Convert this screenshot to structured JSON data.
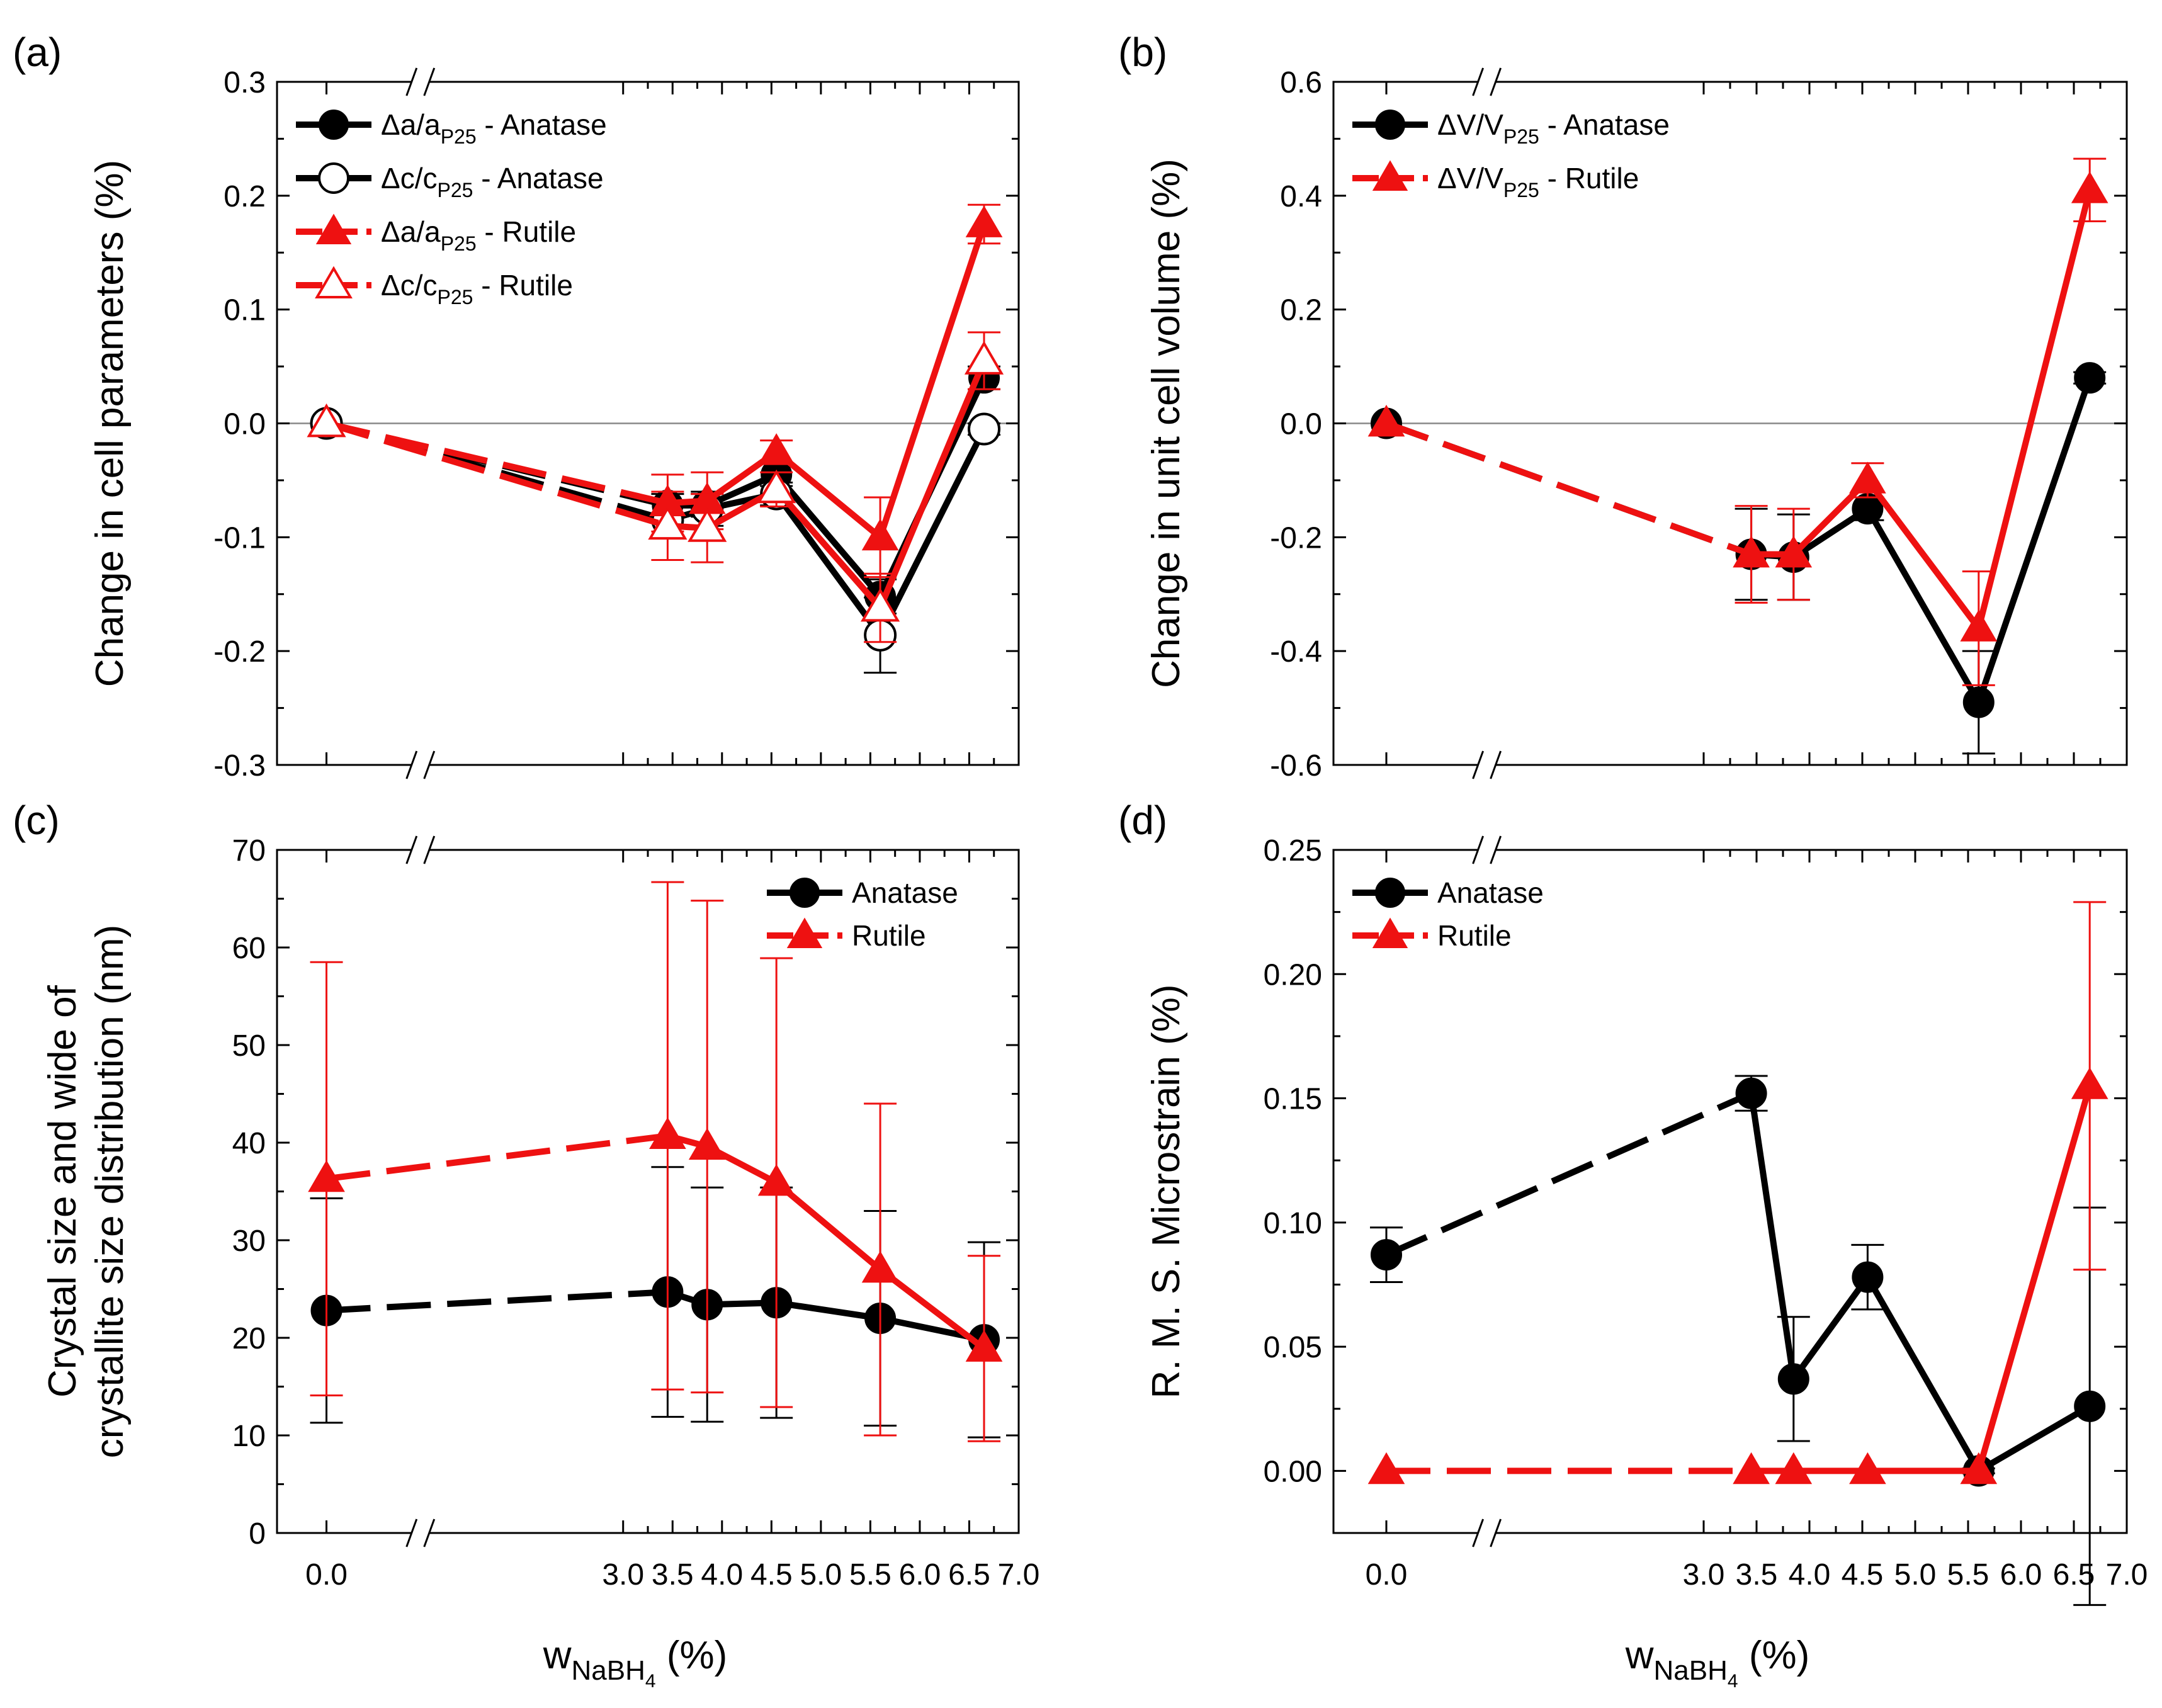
{
  "colors": {
    "anatase": "#000000",
    "rutile": "#ee1111",
    "break_mask": "#ffffff"
  },
  "chart_data": [
    {
      "id": "a",
      "type": "line",
      "panel_label": "(a)",
      "ylabel": "Change in cell parameters (%)",
      "xlabel": "",
      "ylim": [
        -0.3,
        0.3
      ],
      "yticks": [
        -0.3,
        -0.2,
        -0.1,
        0.0,
        0.1,
        0.2,
        0.3
      ],
      "ytick_labels": [
        "-0.3",
        "-0.2",
        "-0.1",
        "0.0",
        "0.1",
        "0.2",
        "0.3"
      ],
      "zero_line": true,
      "xlim": [
        -0.5,
        7.0
      ],
      "x_break": [
        0.3,
        3.0
      ],
      "show_xtick_labels": false,
      "legend_position": "top-left",
      "series": [
        {
          "name": "Δa/a",
          "sub": "P25",
          "suffix": " - Anatase",
          "color": "anatase",
          "marker": "circle",
          "filled": true,
          "x": [
            0.0,
            3.45,
            3.85,
            4.55,
            5.6,
            6.65
          ],
          "y": [
            0.0,
            -0.072,
            -0.072,
            -0.045,
            -0.152,
            0.04
          ],
          "err": [
            0.0,
            0.01,
            0.01,
            0.01,
            0.015,
            0.01
          ]
        },
        {
          "name": "Δc/c",
          "sub": "P25",
          "suffix": " - Anatase",
          "color": "anatase",
          "marker": "circle",
          "filled": false,
          "x": [
            0.0,
            3.45,
            3.85,
            4.55,
            5.6,
            6.65
          ],
          "y": [
            0.0,
            -0.085,
            -0.075,
            -0.062,
            -0.186,
            -0.005
          ],
          "err": [
            0.0,
            0.015,
            0.015,
            0.01,
            0.033,
            0.005
          ]
        },
        {
          "name": "Δa/a",
          "sub": "P25",
          "suffix": " - Rutile",
          "color": "rutile",
          "marker": "triangle",
          "filled": true,
          "x": [
            0.0,
            3.45,
            3.85,
            4.55,
            5.6,
            6.65
          ],
          "y": [
            0.0,
            -0.07,
            -0.068,
            -0.025,
            -0.1,
            0.175
          ],
          "err": [
            0.0,
            0.025,
            0.025,
            0.01,
            0.035,
            0.017
          ]
        },
        {
          "name": "Δc/c",
          "sub": "P25",
          "suffix": " - Rutile",
          "color": "rutile",
          "marker": "triangle",
          "filled": false,
          "x": [
            0.0,
            3.45,
            3.85,
            4.55,
            5.6,
            6.65
          ],
          "y": [
            0.0,
            -0.09,
            -0.092,
            -0.058,
            -0.162,
            0.055
          ],
          "err": [
            0.0,
            0.03,
            0.03,
            0.015,
            0.03,
            0.025
          ]
        }
      ]
    },
    {
      "id": "b",
      "type": "line",
      "panel_label": "(b)",
      "ylabel": "Change in unit cell volume (%)",
      "xlabel": "",
      "ylim": [
        -0.6,
        0.6
      ],
      "yticks": [
        -0.6,
        -0.4,
        -0.2,
        0.0,
        0.2,
        0.4,
        0.6
      ],
      "ytick_labels": [
        "-0.6",
        "-0.4",
        "-0.2",
        "0.0",
        "0.2",
        "0.4",
        "0.6"
      ],
      "zero_line": true,
      "xlim": [
        -0.5,
        7.0
      ],
      "x_break": [
        0.3,
        3.0
      ],
      "show_xtick_labels": false,
      "legend_position": "top-left",
      "series": [
        {
          "name": "ΔV/V",
          "sub": "P25",
          "suffix": " - Anatase",
          "color": "anatase",
          "marker": "circle",
          "filled": true,
          "x": [
            0.0,
            3.45,
            3.85,
            4.55,
            5.6,
            6.65
          ],
          "y": [
            0.0,
            -0.23,
            -0.235,
            -0.15,
            -0.49,
            0.08
          ],
          "err": [
            0.0,
            0.08,
            0.075,
            0.02,
            0.09,
            0.01
          ]
        },
        {
          "name": "ΔV/V",
          "sub": "P25",
          "suffix": " - Rutile",
          "color": "rutile",
          "marker": "triangle",
          "filled": true,
          "x": [
            0.0,
            3.45,
            3.85,
            4.55,
            5.6,
            6.65
          ],
          "y": [
            0.0,
            -0.23,
            -0.23,
            -0.1,
            -0.36,
            0.41
          ],
          "err": [
            0.0,
            0.085,
            0.08,
            0.03,
            0.1,
            0.055
          ]
        }
      ]
    },
    {
      "id": "c",
      "type": "line",
      "panel_label": "(c)",
      "ylabel_lines": [
        "Crystal size and wide of",
        "crystallite size distribution (nm)"
      ],
      "xlabel_main": "w",
      "xlabel_sub": "NaBH",
      "xlabel_subsub": "4",
      "xlabel_unit": " (%)",
      "ylim": [
        0,
        70
      ],
      "yticks": [
        0,
        10,
        20,
        30,
        40,
        50,
        60,
        70
      ],
      "ytick_labels": [
        "0",
        "10",
        "20",
        "30",
        "40",
        "50",
        "60",
        "70"
      ],
      "zero_line": false,
      "xlim": [
        -0.5,
        7.0
      ],
      "x_break": [
        0.3,
        3.0
      ],
      "show_xtick_labels": true,
      "xticks": [
        0.0,
        3.0,
        3.5,
        4.0,
        4.5,
        5.0,
        5.5,
        6.0,
        6.5,
        7.0
      ],
      "xtick_labels": [
        "0.0",
        "3.0",
        "3.5",
        "4.0",
        "4.5",
        "5.0",
        "5.5",
        "6.0",
        "6.5",
        "7.0"
      ],
      "legend_position": "top-right",
      "series": [
        {
          "name": "Anatase",
          "color": "anatase",
          "marker": "circle",
          "filled": true,
          "x": [
            0.0,
            3.45,
            3.85,
            4.55,
            5.6,
            6.65
          ],
          "y": [
            22.8,
            24.7,
            23.4,
            23.6,
            22.0,
            19.8
          ],
          "err": [
            11.5,
            12.8,
            12.0,
            11.8,
            11.0,
            10.0
          ]
        },
        {
          "name": "Rutile",
          "color": "rutile",
          "marker": "triangle",
          "filled": true,
          "x": [
            0.0,
            3.45,
            3.85,
            4.55,
            5.6,
            6.65
          ],
          "y": [
            36.3,
            40.7,
            39.6,
            35.9,
            27.0,
            18.9
          ],
          "err": [
            22.2,
            26.0,
            25.2,
            23.0,
            17.0,
            9.5
          ]
        }
      ]
    },
    {
      "id": "d",
      "type": "line",
      "panel_label": "(d)",
      "ylabel": "R. M. S. Microstrain (%)",
      "xlabel_main": "w",
      "xlabel_sub": "NaBH",
      "xlabel_subsub": "4",
      "xlabel_unit": " (%)",
      "ylim": [
        -0.025,
        0.25
      ],
      "yticks": [
        0.0,
        0.05,
        0.1,
        0.15,
        0.2,
        0.25
      ],
      "ytick_labels": [
        "0.00",
        "0.05",
        "0.10",
        "0.15",
        "0.20",
        "0.25"
      ],
      "zero_line": false,
      "xlim": [
        -0.5,
        7.0
      ],
      "x_break": [
        0.3,
        3.0
      ],
      "show_xtick_labels": true,
      "xticks": [
        0.0,
        3.0,
        3.5,
        4.0,
        4.5,
        5.0,
        5.5,
        6.0,
        6.5,
        7.0
      ],
      "xtick_labels": [
        "0.0",
        "3.0",
        "3.5",
        "4.0",
        "4.5",
        "5.0",
        "5.5",
        "6.0",
        "6.5",
        "7.0"
      ],
      "legend_position": "top-left",
      "series": [
        {
          "name": "Anatase",
          "color": "anatase",
          "marker": "circle",
          "filled": true,
          "x": [
            0.0,
            3.45,
            3.85,
            4.55,
            5.6,
            6.65
          ],
          "y": [
            0.087,
            0.152,
            0.037,
            0.078,
            0.0,
            0.026
          ],
          "err": [
            0.011,
            0.007,
            0.025,
            0.013,
            0.001,
            0.08
          ]
        },
        {
          "name": "Rutile",
          "color": "rutile",
          "marker": "triangle",
          "filled": true,
          "x": [
            0.0,
            3.45,
            3.85,
            4.55,
            5.6,
            6.65
          ],
          "y": [
            0.0,
            0.0,
            0.0,
            0.0,
            0.0,
            0.155
          ],
          "err": [
            0.0,
            0.0,
            0.0,
            0.0,
            0.0,
            0.074
          ]
        }
      ]
    }
  ]
}
